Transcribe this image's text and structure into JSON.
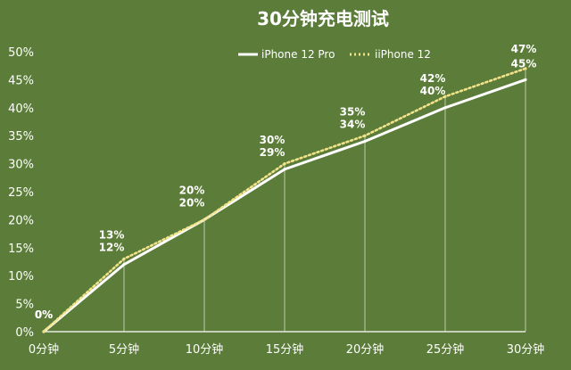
{
  "chart_data": {
    "type": "line",
    "title": "30分钟充电测试",
    "categories": [
      "0分钟",
      "5分钟",
      "10分钟",
      "15分钟",
      "20分钟",
      "25分钟",
      "30分钟"
    ],
    "ylim": [
      0,
      50
    ],
    "yticks": [
      "0%",
      "5%",
      "10%",
      "15%",
      "20%",
      "25%",
      "30%",
      "35%",
      "40%",
      "45%",
      "50%"
    ],
    "grid": false,
    "legend_position": "top-right",
    "series": [
      {
        "name": "iPhone 12 Pro",
        "values": [
          0,
          12,
          20,
          29,
          34,
          40,
          45
        ],
        "labels": [
          "0%",
          "12%",
          "20%",
          "29%",
          "34%",
          "40%",
          "45%"
        ],
        "style": "solid",
        "color": "#ffffff"
      },
      {
        "name": "iiPhone 12",
        "values": [
          0,
          13,
          20,
          30,
          35,
          42,
          47
        ],
        "labels": [
          "0%",
          "13%",
          "20%",
          "30%",
          "35%",
          "42%",
          "47%"
        ],
        "style": "dotted",
        "color": "#f2e38a"
      }
    ]
  }
}
